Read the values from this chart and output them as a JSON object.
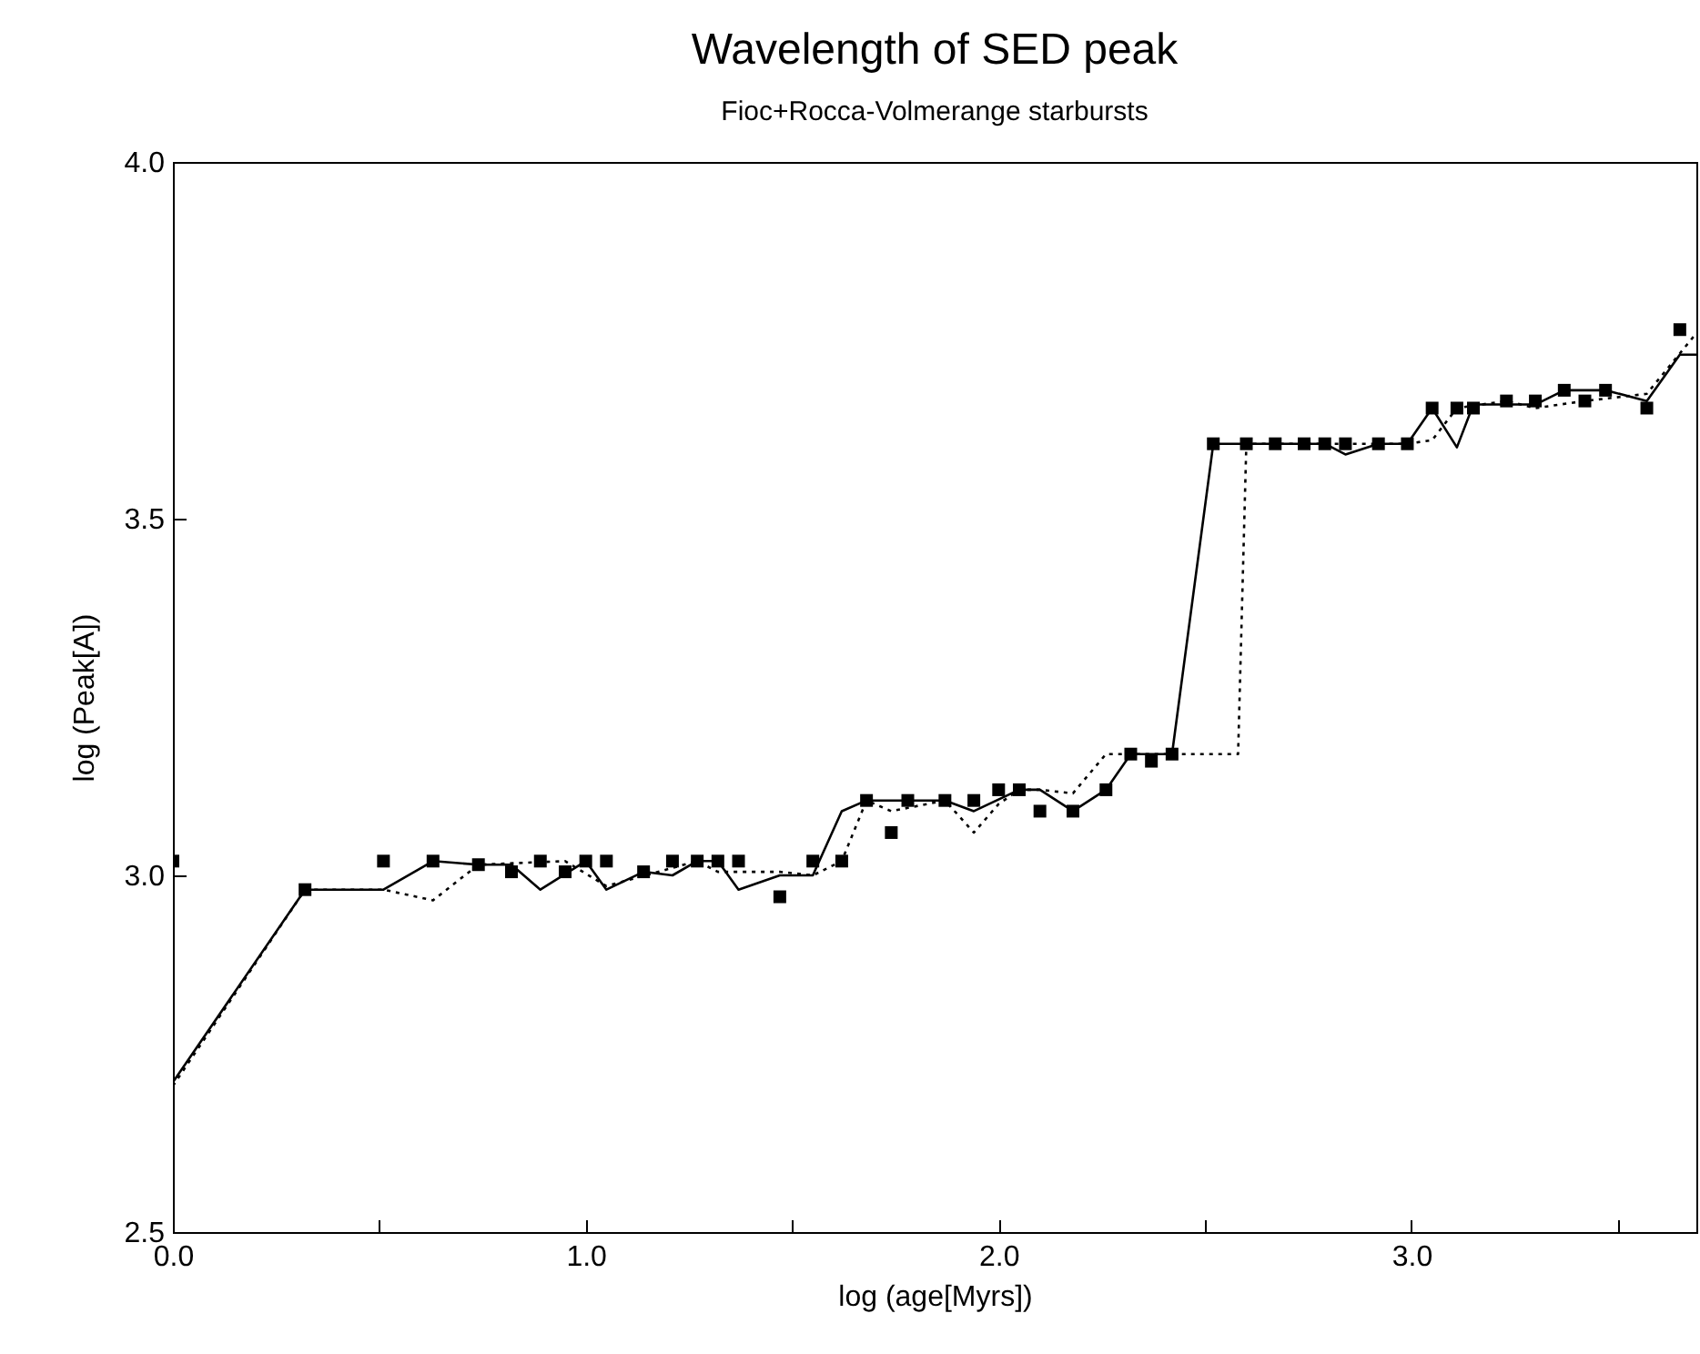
{
  "chart_data": {
    "type": "line",
    "title": "Wavelength of SED peak",
    "subtitle": "Fioc+Rocca-Volmerange starbursts",
    "xlabel": "log (age[Myrs])",
    "ylabel": "log (Peak[A])",
    "xlim": [
      0,
      3.69
    ],
    "ylim": [
      2.5,
      4.0
    ],
    "xticks": [
      {
        "value": 0,
        "label": "0.0"
      },
      {
        "value": 0.5,
        "label": null
      },
      {
        "value": 1,
        "label": "1.0"
      },
      {
        "value": 1.5,
        "label": null
      },
      {
        "value": 2,
        "label": "2.0"
      },
      {
        "value": 2.5,
        "label": null
      },
      {
        "value": 3,
        "label": "3.0"
      },
      {
        "value": 3.5,
        "label": null
      }
    ],
    "yticks": [
      {
        "value": 2.5,
        "label": "2.5"
      },
      {
        "value": 3,
        "label": "3.0"
      },
      {
        "value": 3.5,
        "label": "3.5"
      },
      {
        "value": 4,
        "label": "4.0"
      }
    ],
    "grid": false,
    "series": [
      {
        "color": "#000000",
        "line_style": "solid",
        "x": [
          0,
          0.32,
          0.51,
          0.63,
          0.74,
          0.82,
          0.89,
          1.0,
          1.05,
          1.14,
          1.21,
          1.27,
          1.32,
          1.37,
          1.47,
          1.55,
          1.62,
          1.68,
          1.78,
          1.87,
          1.94,
          2.05,
          2.1,
          2.18,
          2.26,
          2.32,
          2.37,
          2.42,
          2.52,
          2.6,
          2.67,
          2.74,
          2.79,
          2.84,
          2.92,
          2.99,
          3.05,
          3.11,
          3.15,
          3.23,
          3.3,
          3.37,
          3.47,
          3.57,
          3.65,
          3.69
        ],
        "values": [
          2.71,
          2.98,
          2.98,
          3.02,
          3.015,
          3.015,
          2.98,
          3.02,
          2.98,
          3.005,
          3.0,
          3.02,
          3.02,
          2.98,
          3.0,
          3.0,
          3.09,
          3.105,
          3.105,
          3.105,
          3.09,
          3.12,
          3.12,
          3.09,
          3.12,
          3.17,
          3.17,
          3.17,
          3.605,
          3.605,
          3.605,
          3.605,
          3.605,
          3.59,
          3.605,
          3.605,
          3.655,
          3.6,
          3.66,
          3.66,
          3.66,
          3.68,
          3.68,
          3.665,
          3.73,
          3.73
        ]
      },
      {
        "color": "#000000",
        "line_style": "dotted",
        "x": [
          0,
          0.32,
          0.51,
          0.63,
          0.74,
          0.95,
          1.05,
          1.27,
          1.32,
          1.47,
          1.55,
          1.62,
          1.68,
          1.74,
          1.87,
          1.94,
          2.0,
          2.05,
          2.1,
          2.18,
          2.26,
          2.32,
          2.58,
          2.6,
          2.84,
          2.92,
          2.99,
          3.05,
          3.11,
          3.23,
          3.3,
          3.42,
          3.57,
          3.69
        ],
        "values": [
          2.705,
          2.98,
          2.98,
          2.965,
          3.015,
          3.02,
          2.985,
          3.02,
          3.005,
          3.005,
          3.0,
          3.02,
          3.105,
          3.09,
          3.105,
          3.06,
          3.1,
          3.12,
          3.12,
          3.115,
          3.17,
          3.17,
          3.17,
          3.605,
          3.605,
          3.605,
          3.605,
          3.61,
          3.655,
          3.665,
          3.655,
          3.665,
          3.675,
          3.76
        ]
      },
      {
        "type": "scatter",
        "color": "#000000",
        "marker": "square",
        "x": [
          0,
          0.32,
          0.51,
          0.63,
          0.74,
          0.82,
          0.89,
          0.95,
          1.0,
          1.05,
          1.14,
          1.21,
          1.27,
          1.32,
          1.37,
          1.47,
          1.55,
          1.62,
          1.68,
          1.74,
          1.78,
          1.87,
          1.94,
          2.0,
          2.05,
          2.1,
          2.18,
          2.26,
          2.32,
          2.37,
          2.42,
          2.52,
          2.6,
          2.67,
          2.74,
          2.79,
          2.84,
          2.92,
          2.99,
          3.05,
          3.11,
          3.15,
          3.23,
          3.3,
          3.37,
          3.42,
          3.47,
          3.57,
          3.65
        ],
        "values": [
          3.02,
          2.98,
          3.02,
          3.02,
          3.015,
          3.005,
          3.02,
          3.005,
          3.02,
          3.02,
          3.005,
          3.02,
          3.02,
          3.02,
          3.02,
          2.97,
          3.02,
          3.02,
          3.105,
          3.06,
          3.105,
          3.105,
          3.105,
          3.12,
          3.12,
          3.09,
          3.09,
          3.12,
          3.17,
          3.16,
          3.17,
          3.605,
          3.605,
          3.605,
          3.605,
          3.605,
          3.605,
          3.605,
          3.605,
          3.655,
          3.655,
          3.655,
          3.665,
          3.665,
          3.68,
          3.665,
          3.68,
          3.655,
          3.765
        ]
      }
    ]
  }
}
